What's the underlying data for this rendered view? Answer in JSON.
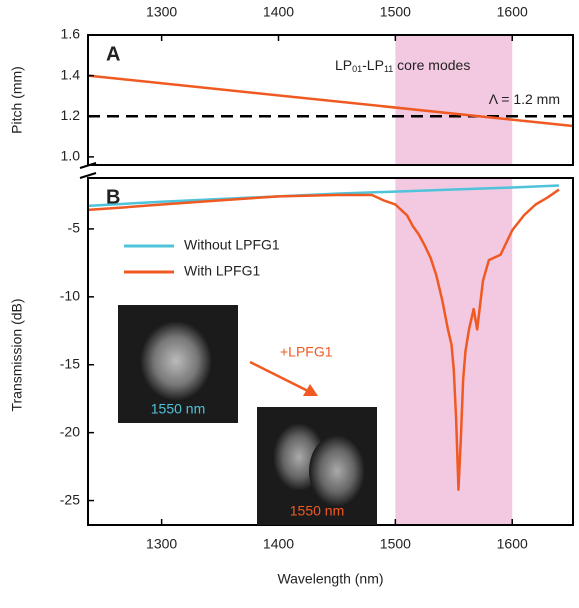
{
  "chart_data": [
    {
      "type": "line",
      "panel_label": "A",
      "ylabel": "Pitch (mm)",
      "xlim": [
        1237,
        1652
      ],
      "xticks": [
        1300,
        1400,
        1500,
        1600
      ],
      "xaxis": "top",
      "ylim": [
        0.96,
        1.6
      ],
      "yticks": [
        {
          "value": 1,
          "label": "1.0"
        },
        1.2,
        1.4,
        1.6
      ],
      "span": {
        "x": [
          1500,
          1600
        ],
        "color": "#f2c9e1"
      },
      "hline": {
        "value": 1.2,
        "label": "Λ = 1.2 mm",
        "color": "#000000"
      },
      "annotation": [
        "LP",
        "01",
        "-LP",
        "11",
        " core modes"
      ],
      "series": [
        {
          "color": "#f05a22",
          "x": [
            1237,
            1652
          ],
          "values": [
            1.4,
            1.152
          ]
        }
      ]
    },
    {
      "type": "line",
      "panel_label": "B",
      "ylabel": "Transmission (dB)",
      "xlabel": "Wavelength (nm)",
      "xlim": [
        1237,
        1652
      ],
      "xticks": [
        1300,
        1400,
        1500,
        1600
      ],
      "xaxis": "bottom",
      "ylim": [
        -26.8,
        -1.25
      ],
      "yticks": [
        -25,
        -20,
        -15,
        -10,
        -5
      ],
      "span": {
        "x": [
          1500,
          1600
        ],
        "color": "#f2c9e1"
      },
      "legend": "upper left",
      "series": [
        {
          "name": "Without LPFG1",
          "color": "#4fc3d9",
          "x": [
            1237,
            1300,
            1350,
            1400,
            1450,
            1500,
            1550,
            1600,
            1640
          ],
          "values": [
            -3.3,
            -3.0,
            -2.8,
            -2.6,
            -2.4,
            -2.25,
            -2.1,
            -1.95,
            -1.8
          ]
        },
        {
          "name": "With LPFG1",
          "color": "#f05a22",
          "x": [
            1237,
            1270,
            1300,
            1350,
            1400,
            1450,
            1480,
            1490,
            1500,
            1505,
            1510,
            1515,
            1520,
            1525,
            1530,
            1535,
            1540,
            1545,
            1548,
            1550,
            1552,
            1554,
            1556,
            1558,
            1560,
            1563,
            1567,
            1570,
            1575,
            1580,
            1590,
            1600,
            1610,
            1620,
            1630,
            1640
          ],
          "values": [
            -3.6,
            -3.4,
            -3.2,
            -2.9,
            -2.6,
            -2.5,
            -2.5,
            -2.9,
            -3.2,
            -3.6,
            -4.0,
            -4.8,
            -5.4,
            -6.2,
            -7.1,
            -8.4,
            -10.2,
            -12.4,
            -13.5,
            -15.4,
            -19.0,
            -24.2,
            -20.5,
            -16.1,
            -14.0,
            -12.4,
            -10.9,
            -12.4,
            -8.8,
            -7.3,
            -6.9,
            -5.1,
            -4.0,
            -3.2,
            -2.7,
            -2.1
          ]
        }
      ],
      "insets": [
        {
          "label": "1550 nm",
          "color": "#4fc3d9"
        },
        {
          "label": "1550 nm",
          "color": "#f05a22"
        }
      ],
      "arrow_label": "+LPFG1"
    }
  ]
}
